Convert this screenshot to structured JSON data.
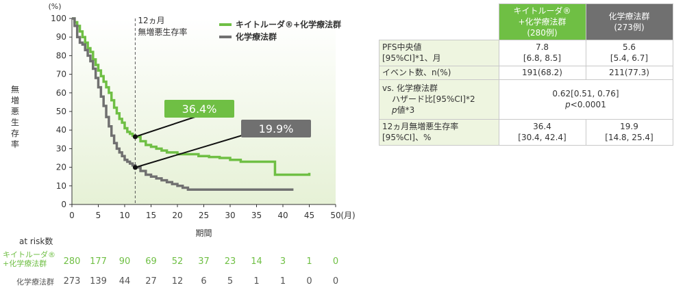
{
  "chart_data": {
    "type": "line",
    "subtype": "kaplan-meier",
    "y_unit": "(%)",
    "x_unit": "(月)",
    "xlabel": "期間",
    "ylabel": "無増悪生存率",
    "xlim": [
      0,
      50
    ],
    "ylim": [
      0,
      100
    ],
    "x_ticks": [
      0,
      5,
      10,
      15,
      20,
      25,
      30,
      35,
      40,
      45,
      50
    ],
    "y_ticks": [
      0,
      10,
      20,
      30,
      40,
      50,
      60,
      70,
      80,
      90,
      100
    ],
    "grid": false,
    "legend": "top-right",
    "landmark": {
      "x": 12,
      "label_line1": "12ヵ月",
      "label_line2": "無増悪生存率"
    },
    "series": [
      {
        "name": "キイトルーダ®+化学療法群",
        "color": "#6fbf44",
        "callout": "36.4%",
        "point_at_landmark": 36.4,
        "points": [
          [
            0,
            100
          ],
          [
            0.5,
            98
          ],
          [
            1,
            96
          ],
          [
            1.5,
            93
          ],
          [
            2,
            90
          ],
          [
            2.5,
            87
          ],
          [
            3,
            84
          ],
          [
            3.5,
            82
          ],
          [
            4,
            78
          ],
          [
            4.5,
            75
          ],
          [
            5,
            72
          ],
          [
            5.5,
            69
          ],
          [
            6,
            66
          ],
          [
            6.5,
            63
          ],
          [
            7,
            60
          ],
          [
            7.5,
            56
          ],
          [
            8,
            52
          ],
          [
            8.5,
            49
          ],
          [
            9,
            46
          ],
          [
            9.5,
            44
          ],
          [
            10,
            41
          ],
          [
            10.5,
            39
          ],
          [
            11,
            38
          ],
          [
            11.5,
            37
          ],
          [
            12,
            36.4
          ],
          [
            13,
            34
          ],
          [
            14,
            32
          ],
          [
            15,
            31
          ],
          [
            16,
            30
          ],
          [
            17,
            29
          ],
          [
            18,
            28
          ],
          [
            19,
            28
          ],
          [
            20,
            27
          ],
          [
            22,
            27
          ],
          [
            24,
            26
          ],
          [
            26,
            25.5
          ],
          [
            28,
            25
          ],
          [
            30,
            24
          ],
          [
            32,
            23
          ],
          [
            34,
            23
          ],
          [
            36,
            23
          ],
          [
            38,
            23
          ],
          [
            38.5,
            16
          ],
          [
            40,
            16
          ],
          [
            42,
            16
          ],
          [
            44,
            16
          ],
          [
            45,
            17
          ]
        ]
      },
      {
        "name": "化学療法群",
        "color": "#707070",
        "callout": "19.9%",
        "point_at_landmark": 19.9,
        "points": [
          [
            0,
            100
          ],
          [
            0.5,
            96
          ],
          [
            1,
            90
          ],
          [
            1.5,
            87
          ],
          [
            2,
            86
          ],
          [
            2.5,
            83
          ],
          [
            3,
            80
          ],
          [
            3.5,
            77
          ],
          [
            4,
            73
          ],
          [
            4.5,
            68
          ],
          [
            5,
            63
          ],
          [
            5.5,
            58
          ],
          [
            6,
            53
          ],
          [
            6.5,
            47
          ],
          [
            7,
            42
          ],
          [
            7.5,
            37
          ],
          [
            8,
            33
          ],
          [
            8.5,
            30
          ],
          [
            9,
            28
          ],
          [
            9.5,
            26
          ],
          [
            10,
            24
          ],
          [
            10.5,
            23
          ],
          [
            11,
            22
          ],
          [
            11.5,
            21
          ],
          [
            12,
            19.9
          ],
          [
            13,
            18
          ],
          [
            14,
            16
          ],
          [
            15,
            15
          ],
          [
            16,
            14
          ],
          [
            17,
            13
          ],
          [
            18,
            12
          ],
          [
            19,
            11
          ],
          [
            20,
            10
          ],
          [
            21,
            9
          ],
          [
            22,
            8
          ],
          [
            24,
            8
          ],
          [
            26,
            8
          ],
          [
            28,
            8
          ],
          [
            30,
            8
          ],
          [
            35,
            8
          ],
          [
            40,
            8
          ],
          [
            42,
            8
          ]
        ]
      }
    ],
    "at_risk": {
      "title": "at risk数",
      "times": [
        0,
        5,
        10,
        15,
        20,
        25,
        30,
        35,
        40,
        45,
        50
      ],
      "rows": [
        {
          "label_line1": "キイトルーダ®",
          "label_line2": "+化学療法群",
          "color": "#6fbf44",
          "values": [
            "280",
            "177",
            "90",
            "69",
            "52",
            "37",
            "23",
            "14",
            "3",
            "1",
            "0"
          ]
        },
        {
          "label_line1": "化学療法群",
          "label_line2": "",
          "color": "#555555",
          "values": [
            "273",
            "139",
            "44",
            "27",
            "12",
            "6",
            "5",
            "1",
            "1",
            "0",
            "0"
          ]
        }
      ]
    }
  },
  "table": {
    "headers": [
      {
        "line1": "キイトルーダ®",
        "line2": "+化学療法群",
        "line3": "(280例)"
      },
      {
        "line1": "化学療法群",
        "line2": "(273例)",
        "line3": ""
      }
    ],
    "rows": {
      "pfs_median": {
        "label1": "PFS中央値",
        "label2": "[95%CI]*1、月",
        "v1a": "7.8",
        "v1b": "[6.8, 8.5]",
        "v2a": "5.6",
        "v2b": "[5.4, 6.7]"
      },
      "events": {
        "label": "イベント数、n(%)",
        "v1": "191(68.2)",
        "v2": "211(77.3)"
      },
      "hr": {
        "label1": "vs. 化学療法群",
        "label2": "ハザード比[95%CI]*2",
        "label3a": "p",
        "label3b": "値*3",
        "va": "0.62[0.51, 0.76]",
        "vb_p": "p",
        "vb": "<0.0001"
      },
      "pfs12": {
        "label1": "12ヵ月無増悪生存率",
        "label2": "[95%CI]、%",
        "v1a": "36.4",
        "v1b": "[30.4, 42.4]",
        "v2a": "19.9",
        "v2b": "[14.8, 25.4]"
      }
    }
  }
}
